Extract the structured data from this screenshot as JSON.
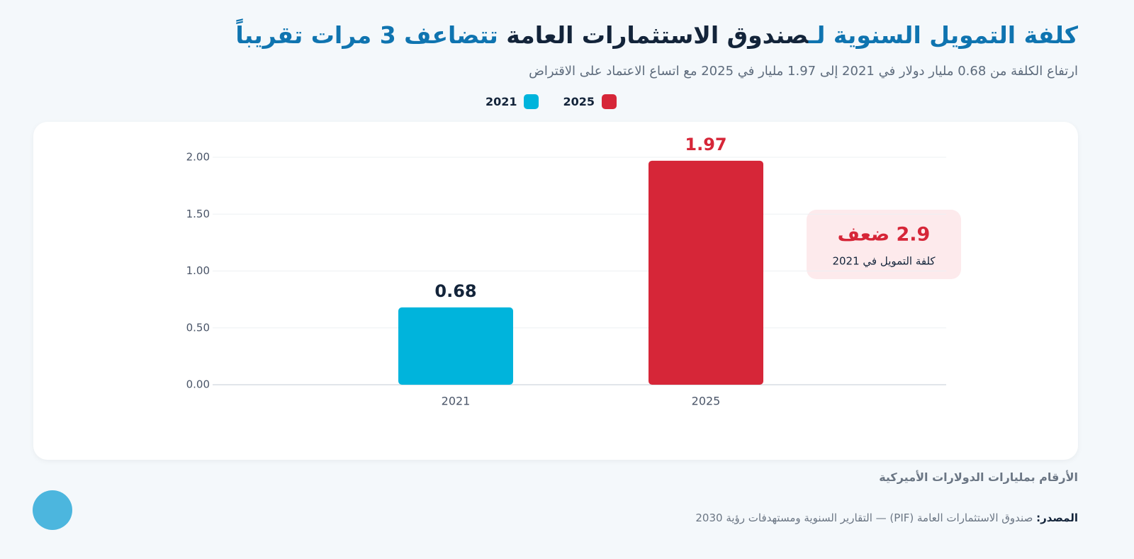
{
  "chart_data": {
    "type": "bar",
    "title_parts": [
      "كلفة التمويل السنوية لـ",
      "صندوق الاستثمارات العامة",
      " تتضاعف 3 مرات تقريباً"
    ],
    "subtitle": "ارتفاع الكلفة من 0.68 مليار دولار في 2021 إلى 1.97 مليار في 2025 مع اتساع الاعتماد على الاقتراض",
    "categories": [
      "2021",
      "2025"
    ],
    "values": [
      0.68,
      1.97
    ],
    "colors": [
      "#00b4dc",
      "#d62638"
    ],
    "ylim": [
      0,
      2
    ],
    "yticks": [
      {
        "value": 0,
        "label": "0.00"
      },
      {
        "value": 0.5,
        "label": "0.50"
      },
      {
        "value": 1,
        "label": "1.00"
      },
      {
        "value": 1.5,
        "label": "1.50"
      },
      {
        "value": 2,
        "label": "2.00"
      }
    ],
    "grid": true,
    "annotation": {
      "headline": "2.9 ضعف",
      "text": "كلفة التمويل في 2021"
    },
    "unit_note": "الأرقام بمليارات الدولارات الأميركية",
    "source_label": "المصدر:",
    "source": " صندوق الاستثمارات العامة (PIF) — التقارير السنوية ومستهدفات رؤية 2030"
  }
}
